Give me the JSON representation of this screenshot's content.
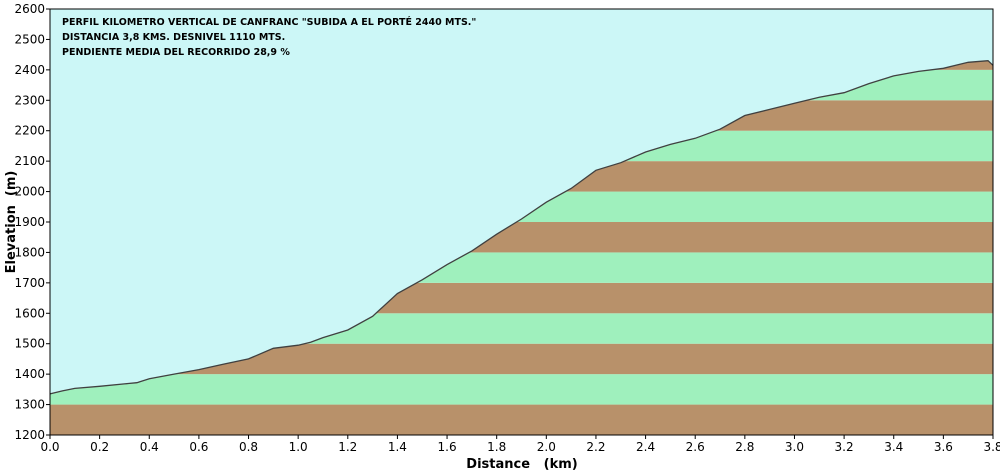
{
  "chart_data": {
    "type": "area",
    "title": "",
    "annotations": [
      "PERFIL  KILOMETRO VERTICAL DE CANFRANC  \"SUBIDA  A EL PORTÉ  2440 MTS.\"",
      "DISTANCIA 3,8 KMS. DESNIVEL 1110 MTS.",
      "PENDIENTE MEDIA DEL RECORRIDO 28,9 %"
    ],
    "xlabel": "Distance   (km)",
    "ylabel": "Elevation  (m)",
    "xlim": [
      0.0,
      3.8
    ],
    "ylim": [
      1200,
      2600
    ],
    "x_ticks": [
      "0.0",
      "0.2",
      "0.4",
      "0.6",
      "0.8",
      "1.0",
      "1.2",
      "1.4",
      "1.6",
      "1.8",
      "2.0",
      "2.2",
      "2.4",
      "2.6",
      "2.8",
      "3.0",
      "3.2",
      "3.4",
      "3.6",
      "3.8"
    ],
    "y_ticks": [
      "1200",
      "1300",
      "1400",
      "1500",
      "1600",
      "1700",
      "1800",
      "1900",
      "2000",
      "2100",
      "2200",
      "2300",
      "2400",
      "2500",
      "2600"
    ],
    "band_step_m": 100,
    "colors": {
      "sky": "#ccf7f7",
      "band_brown": "#b8916a",
      "band_green": "#9ff0bd",
      "profile_line": "#404040"
    },
    "series": [
      {
        "x": [
          0.0,
          0.05,
          0.1,
          0.2,
          0.3,
          0.35,
          0.4,
          0.5,
          0.6,
          0.7,
          0.8,
          0.9,
          1.0,
          1.05,
          1.1,
          1.2,
          1.3,
          1.4,
          1.5,
          1.6,
          1.7,
          1.8,
          1.9,
          2.0,
          2.1,
          2.2,
          2.3,
          2.4,
          2.5,
          2.6,
          2.7,
          2.8,
          2.9,
          3.0,
          3.05,
          3.1,
          3.2,
          3.3,
          3.4,
          3.5,
          3.6,
          3.65,
          3.7,
          3.78,
          3.8
        ],
        "y": [
          1335,
          1345,
          1353,
          1360,
          1368,
          1372,
          1385,
          1400,
          1415,
          1433,
          1450,
          1485,
          1495,
          1505,
          1520,
          1545,
          1590,
          1665,
          1710,
          1760,
          1805,
          1860,
          1910,
          1965,
          2010,
          2070,
          2095,
          2130,
          2155,
          2175,
          2205,
          2250,
          2270,
          2290,
          2300,
          2310,
          2325,
          2355,
          2380,
          2395,
          2405,
          2415,
          2425,
          2430,
          2415
        ]
      }
    ]
  }
}
